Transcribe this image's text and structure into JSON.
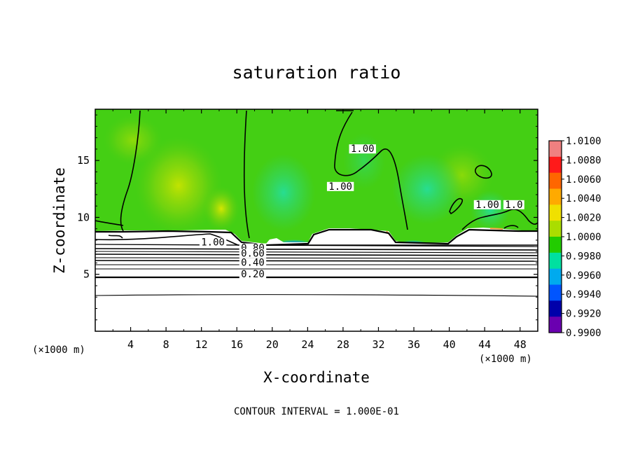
{
  "chart_data": {
    "type": "heatmap",
    "title": "saturation ratio",
    "xlabel": "X-coordinate",
    "ylabel": "Z-coordinate",
    "x_unit_left": "(×1000 m)",
    "x_unit_right": "(×1000 m)",
    "xlim": [
      0,
      50
    ],
    "ylim": [
      0,
      19.5
    ],
    "x_ticks": [
      {
        "value": 4,
        "label": "4"
      },
      {
        "value": 8,
        "label": "8"
      },
      {
        "value": 12,
        "label": "12"
      },
      {
        "value": 16,
        "label": "16"
      },
      {
        "value": 20,
        "label": "20"
      },
      {
        "value": 24,
        "label": "24"
      },
      {
        "value": 28,
        "label": "28"
      },
      {
        "value": 32,
        "label": "32"
      },
      {
        "value": 36,
        "label": "36"
      },
      {
        "value": 40,
        "label": "40"
      },
      {
        "value": 44,
        "label": "44"
      },
      {
        "value": 48,
        "label": "48"
      }
    ],
    "y_ticks": [
      {
        "value": 5,
        "label": "5"
      },
      {
        "value": 10,
        "label": "10"
      },
      {
        "value": 15,
        "label": "15"
      }
    ],
    "colorbar": {
      "min": 0.99,
      "max": 1.01,
      "labels": [
        "1.0100",
        "1.0080",
        "1.0060",
        "1.0040",
        "1.0020",
        "1.0000",
        "0.9980",
        "0.9960",
        "0.9940",
        "0.9920",
        "0.9900"
      ],
      "colors": [
        "#f08080",
        "#ff1a1a",
        "#ff6600",
        "#ffaa00",
        "#f0e000",
        "#aadd00",
        "#22cc00",
        "#00e0a0",
        "#00aaee",
        "#0055ff",
        "#0000aa",
        "#6a00b0"
      ]
    },
    "contour_labels": [
      {
        "text": "1.00",
        "x": 30.2,
        "z": 15.8
      },
      {
        "text": "1.00",
        "x": 27.7,
        "z": 12.5
      },
      {
        "text": "1.00",
        "x": 44.3,
        "z": 10.9
      },
      {
        "text": "1.0",
        "x": 47.3,
        "z": 10.9
      },
      {
        "text": "1.00",
        "x": 13.3,
        "z": 7.6
      },
      {
        "text": "0.80",
        "x": 17.8,
        "z": 7.1
      },
      {
        "text": "0.60",
        "x": 17.8,
        "z": 6.6
      },
      {
        "text": "0.40",
        "x": 17.8,
        "z": 5.8
      },
      {
        "text": "0.20",
        "x": 17.8,
        "z": 4.8
      }
    ],
    "contour_interval_text": "CONTOUR INTERVAL = 1.000E-01",
    "grid": false
  }
}
